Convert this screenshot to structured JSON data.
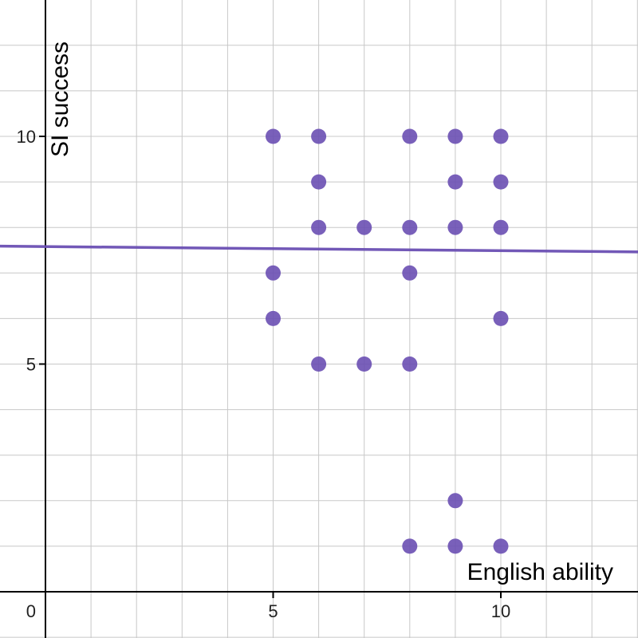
{
  "chart_data": {
    "type": "scatter",
    "xlabel": "English ability",
    "ylabel": "SI success",
    "xlim": [
      -1,
      13
    ],
    "ylim": [
      -1,
      13
    ],
    "grid": true,
    "x_ticks": [
      0,
      5,
      10
    ],
    "y_ticks": [
      5,
      10
    ],
    "x_tick_labels": [
      "0",
      "5",
      "10"
    ],
    "y_tick_labels": [
      "5",
      "10"
    ],
    "colors": {
      "points": "#6a4fb3",
      "line": "#6a4fb3",
      "grid": "#c8c8c8",
      "axis": "#000000"
    },
    "points": [
      {
        "x": 5,
        "y": 10
      },
      {
        "x": 6,
        "y": 10
      },
      {
        "x": 8,
        "y": 10
      },
      {
        "x": 9,
        "y": 10
      },
      {
        "x": 10,
        "y": 10
      },
      {
        "x": 6,
        "y": 9
      },
      {
        "x": 9,
        "y": 9
      },
      {
        "x": 10,
        "y": 9
      },
      {
        "x": 6,
        "y": 8
      },
      {
        "x": 7,
        "y": 8
      },
      {
        "x": 8,
        "y": 8
      },
      {
        "x": 9,
        "y": 8
      },
      {
        "x": 10,
        "y": 8
      },
      {
        "x": 5,
        "y": 7
      },
      {
        "x": 8,
        "y": 7
      },
      {
        "x": 5,
        "y": 6
      },
      {
        "x": 10,
        "y": 6
      },
      {
        "x": 6,
        "y": 5
      },
      {
        "x": 7,
        "y": 5
      },
      {
        "x": 8,
        "y": 5
      },
      {
        "x": 9,
        "y": 2
      },
      {
        "x": 8,
        "y": 1
      },
      {
        "x": 9,
        "y": 1
      },
      {
        "x": 10,
        "y": 1
      }
    ],
    "trend_line": {
      "slope": -0.009,
      "intercept": 7.58
    }
  }
}
